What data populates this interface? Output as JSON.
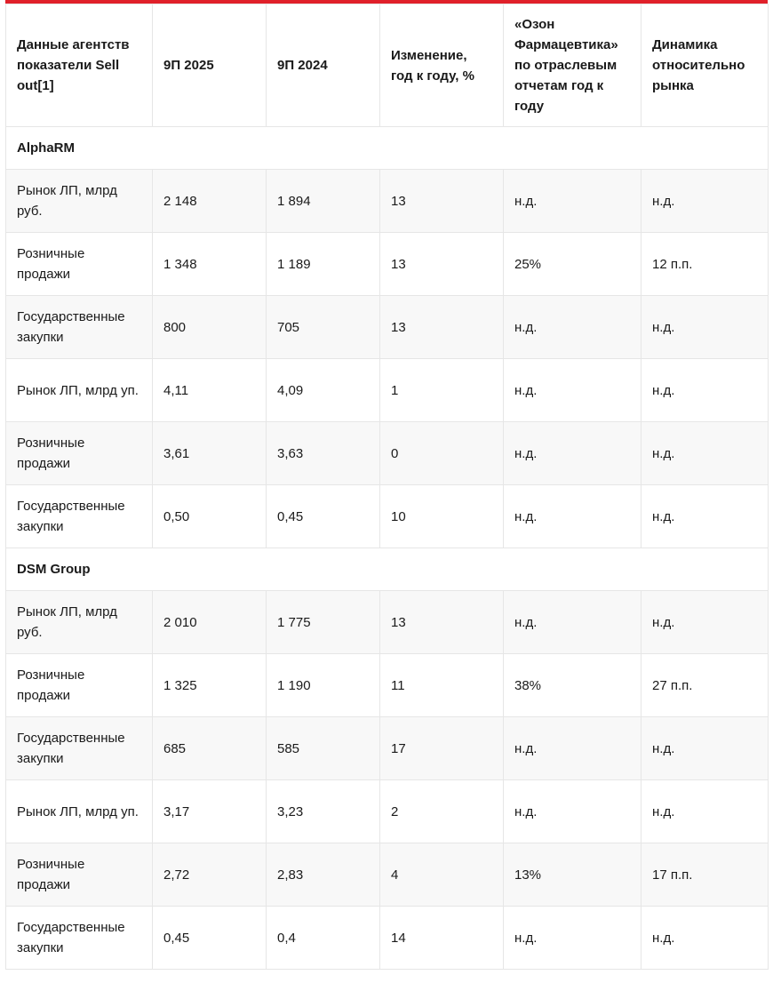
{
  "header": [
    "Данные агентств показатели Sell out[1]",
    "9П 2025",
    "9П 2024",
    "Изменение, год к году, %",
    "«Озон Фармацевтика» по отраслевым отчетам год к году",
    "Динамика относительно рынка"
  ],
  "sections": [
    {
      "title": "AlphaRM",
      "rows": [
        [
          "Рынок ЛП, млрд руб.",
          "2 148",
          "1 894",
          "13",
          "н.д.",
          "н.д."
        ],
        [
          "Розничные продажи",
          "1 348",
          "1 189",
          "13",
          "25%",
          "12 п.п."
        ],
        [
          "Государственные закупки",
          "800",
          "705",
          "13",
          "н.д.",
          "н.д."
        ],
        [
          "Рынок ЛП, млрд уп.",
          "4,11",
          "4,09",
          "1",
          "н.д.",
          "н.д."
        ],
        [
          "Розничные продажи",
          "3,61",
          "3,63",
          "0",
          "н.д.",
          "н.д."
        ],
        [
          "Государственные закупки",
          "0,50",
          "0,45",
          "10",
          "н.д.",
          "н.д."
        ]
      ]
    },
    {
      "title": "DSM Group",
      "rows": [
        [
          "Рынок ЛП, млрд руб.",
          "2 010",
          "1 775",
          "13",
          "н.д.",
          "н.д."
        ],
        [
          "Розничные продажи",
          "1 325",
          "1 190",
          "11",
          "38%",
          "27 п.п."
        ],
        [
          "Государственные закупки",
          "685",
          "585",
          "17",
          "н.д.",
          "н.д."
        ],
        [
          "Рынок ЛП, млрд уп.",
          "3,17",
          "3,23",
          "2",
          "н.д.",
          "н.д."
        ],
        [
          "Розничные продажи",
          "2,72",
          "2,83",
          "4",
          "13%",
          "17 п.п."
        ],
        [
          "Государственные закупки",
          "0,45",
          "0,4",
          "14",
          "н.д.",
          "н.д."
        ]
      ]
    }
  ],
  "colors": {
    "accent": "#e0202a",
    "row_alt": "#f8f8f8",
    "border": "#e6e6e6"
  }
}
